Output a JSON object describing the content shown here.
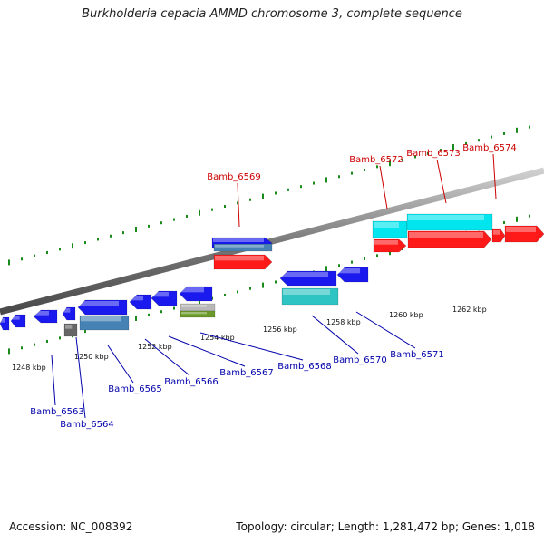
{
  "title": "Burkholderia cepacia AMMD chromosome 3, complete sequence",
  "footer": {
    "accession": "Accession: NC_008392",
    "info": "Topology: circular; Length: 1,281,472 bp; Genes: 1,018"
  },
  "colors": {
    "backbone": "#808080",
    "tick": "#1a8a1a",
    "forward_label": "#cc0000",
    "reverse_label": "#0000aa",
    "cds_red": "#ff1a1a",
    "cds_cyan": "#00e5ee",
    "cds_blue": "#1a1aee",
    "cds_steel": "#4682b4",
    "cds_gray": "#666666",
    "cds_teal": "#2ec4c4",
    "cds_silver": "#b8b8b8",
    "cds_olive": "#6b9a2a"
  },
  "scale_labels": [
    "1248 kbp",
    "1250 kbp",
    "1252 kbp",
    "1254 kbp",
    "1256 kbp",
    "1258 kbp",
    "1260 kbp",
    "1262 kbp"
  ],
  "forward_genes": [
    "Bamb_6569",
    "Bamb_6572",
    "Bamb_6573",
    "Bamb_6574"
  ],
  "reverse_genes": [
    "Bamb_6563",
    "Bamb_6564",
    "Bamb_6565",
    "Bamb_6566",
    "Bamb_6567",
    "Bamb_6568",
    "Bamb_6570",
    "Bamb_6571"
  ]
}
